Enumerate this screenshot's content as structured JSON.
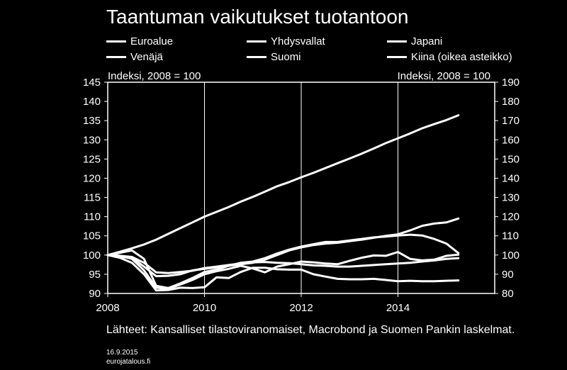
{
  "chart_data": {
    "type": "line",
    "title": "Taantuman vaikutukset tuotantoon",
    "ylabel_left": "Indeksi, 2008 = 100",
    "ylabel_right": "Indeksi, 2008 = 100",
    "ylim_left": [
      90,
      145
    ],
    "ylim_right": [
      80,
      190
    ],
    "yticks_left": [
      "145",
      "140",
      "135",
      "130",
      "125",
      "120",
      "115",
      "110",
      "105",
      "100",
      "95",
      "90"
    ],
    "yticks_right": [
      "190",
      "180",
      "170",
      "160",
      "150",
      "140",
      "130",
      "120",
      "110",
      "100",
      "90",
      "80"
    ],
    "xlim": [
      2008,
      2016
    ],
    "xticks": [
      "2008",
      "2010",
      "2012",
      "2014"
    ],
    "grid": "vertical",
    "legend_placement": "top",
    "series": [
      {
        "name": "Euroalue",
        "axis": "left",
        "x": [
          2008,
          2008.25,
          2008.5,
          2008.75,
          2009,
          2009.25,
          2009.5,
          2009.75,
          2010,
          2010.25,
          2010.5,
          2010.75,
          2011,
          2011.25,
          2011.5,
          2011.75,
          2012,
          2012.25,
          2012.5,
          2012.75,
          2013,
          2013.25,
          2013.5,
          2013.75,
          2014,
          2014.25,
          2014.5,
          2014.75,
          2015,
          2015.25
        ],
        "y": [
          100,
          99.8,
          99.5,
          98,
          95.5,
          95.3,
          95.6,
          95.9,
          96.6,
          97,
          97.4,
          97.8,
          98.1,
          98.2,
          98,
          97.9,
          97.6,
          97.3,
          97.2,
          97,
          97,
          97.2,
          97.4,
          97.6,
          97.8,
          98,
          98.3,
          98.6,
          99,
          99.2
        ]
      },
      {
        "name": "Yhdysvallat",
        "axis": "left",
        "x": [
          2008,
          2008.25,
          2008.5,
          2008.75,
          2009,
          2009.25,
          2009.5,
          2009.75,
          2010,
          2010.25,
          2010.5,
          2010.75,
          2011,
          2011.25,
          2011.5,
          2011.75,
          2012,
          2012.25,
          2012.5,
          2012.75,
          2013,
          2013.25,
          2013.5,
          2013.75,
          2014,
          2014.25,
          2014.5,
          2014.75,
          2015,
          2015.25
        ],
        "y": [
          100,
          99.5,
          99.3,
          97,
          94.5,
          94.6,
          95,
          96,
          96.4,
          96.8,
          97.2,
          97.6,
          98,
          98.8,
          100,
          101.2,
          102,
          102.6,
          103,
          103.2,
          103.6,
          104,
          104.5,
          105,
          105.4,
          106.4,
          107.6,
          108.2,
          108.5,
          109.5
        ]
      },
      {
        "name": "Japani",
        "axis": "left",
        "x": [
          2008,
          2008.25,
          2008.5,
          2008.75,
          2009,
          2009.25,
          2009.5,
          2009.75,
          2010,
          2010.25,
          2010.5,
          2010.75,
          2011,
          2011.25,
          2011.5,
          2011.75,
          2012,
          2012.25,
          2012.5,
          2012.75,
          2013,
          2013.25,
          2013.5,
          2013.75,
          2014,
          2014.25,
          2014.5,
          2014.75,
          2015,
          2015.25
        ],
        "y": [
          100,
          99.8,
          99,
          96,
          91.5,
          91.2,
          92.3,
          93.5,
          95,
          95.8,
          96.4,
          97.2,
          96.5,
          95.5,
          97,
          97.6,
          98.3,
          98.1,
          97.8,
          97.6,
          98.5,
          99.3,
          99.9,
          99.8,
          100.8,
          99,
          98.6,
          98.8,
          99.8,
          100.1
        ]
      },
      {
        "name": "Venäjä",
        "axis": "left",
        "x": [
          2008,
          2008.25,
          2008.5,
          2008.75,
          2009,
          2009.25,
          2009.5,
          2009.75,
          2010,
          2010.25,
          2010.5,
          2010.75,
          2011,
          2011.25,
          2011.5,
          2011.75,
          2012,
          2012.25,
          2012.5,
          2012.75,
          2013,
          2013.25,
          2013.5,
          2013.75,
          2014,
          2014.25,
          2014.5,
          2014.75,
          2015,
          2015.25
        ],
        "y": [
          100,
          100.6,
          101.2,
          99,
          92,
          91.4,
          92.6,
          94,
          95.6,
          96.2,
          97.2,
          98,
          98.3,
          99.2,
          100.4,
          101.4,
          102.2,
          102.8,
          103.4,
          103.4,
          103.8,
          104.2,
          104.6,
          104.8,
          105.1,
          105.3,
          105.1,
          104.2,
          103,
          100.5
        ]
      },
      {
        "name": "Suomi",
        "axis": "left",
        "x": [
          2008,
          2008.25,
          2008.5,
          2008.75,
          2009,
          2009.25,
          2009.5,
          2009.75,
          2010,
          2010.25,
          2010.5,
          2010.75,
          2011,
          2011.25,
          2011.5,
          2011.75,
          2012,
          2012.25,
          2012.5,
          2012.75,
          2013,
          2013.25,
          2013.5,
          2013.75,
          2014,
          2014.25,
          2014.5,
          2014.75,
          2015,
          2015.25
        ],
        "y": [
          100,
          99.3,
          98,
          95,
          90.8,
          90.9,
          91.5,
          91.4,
          91.6,
          94.2,
          94,
          95.6,
          96.7,
          96.7,
          96.3,
          96.2,
          96.2,
          95,
          94.4,
          93.8,
          93.7,
          93.7,
          93.8,
          93.5,
          93.2,
          93.3,
          93.2,
          93.2,
          93.3,
          93.4
        ]
      },
      {
        "name": "Kiina (oikea asteikko)",
        "axis": "right",
        "x": [
          2008,
          2008.25,
          2008.5,
          2008.75,
          2009,
          2009.25,
          2009.5,
          2009.75,
          2010,
          2010.25,
          2010.5,
          2010.75,
          2011,
          2011.25,
          2011.5,
          2011.75,
          2012,
          2012.25,
          2012.5,
          2012.75,
          2013,
          2013.25,
          2013.5,
          2013.75,
          2014,
          2014.25,
          2014.5,
          2014.75,
          2015,
          2015.25
        ],
        "y": [
          100,
          101.7,
          103.5,
          105.5,
          108,
          111,
          114,
          117,
          120,
          122.5,
          125,
          127.8,
          130.3,
          133,
          135.8,
          138,
          140.5,
          142.8,
          145.3,
          147.8,
          150.3,
          152.8,
          155.5,
          158.3,
          160.8,
          163.3,
          166,
          168.2,
          170.3,
          172.8
        ]
      }
    ],
    "sources": "Lähteet: Kansalliset tilastoviranomaiset, Macrobond ja Suomen Pankin laskelmat.",
    "date": "16.9.2015",
    "site": "eurojatalous.fi"
  }
}
